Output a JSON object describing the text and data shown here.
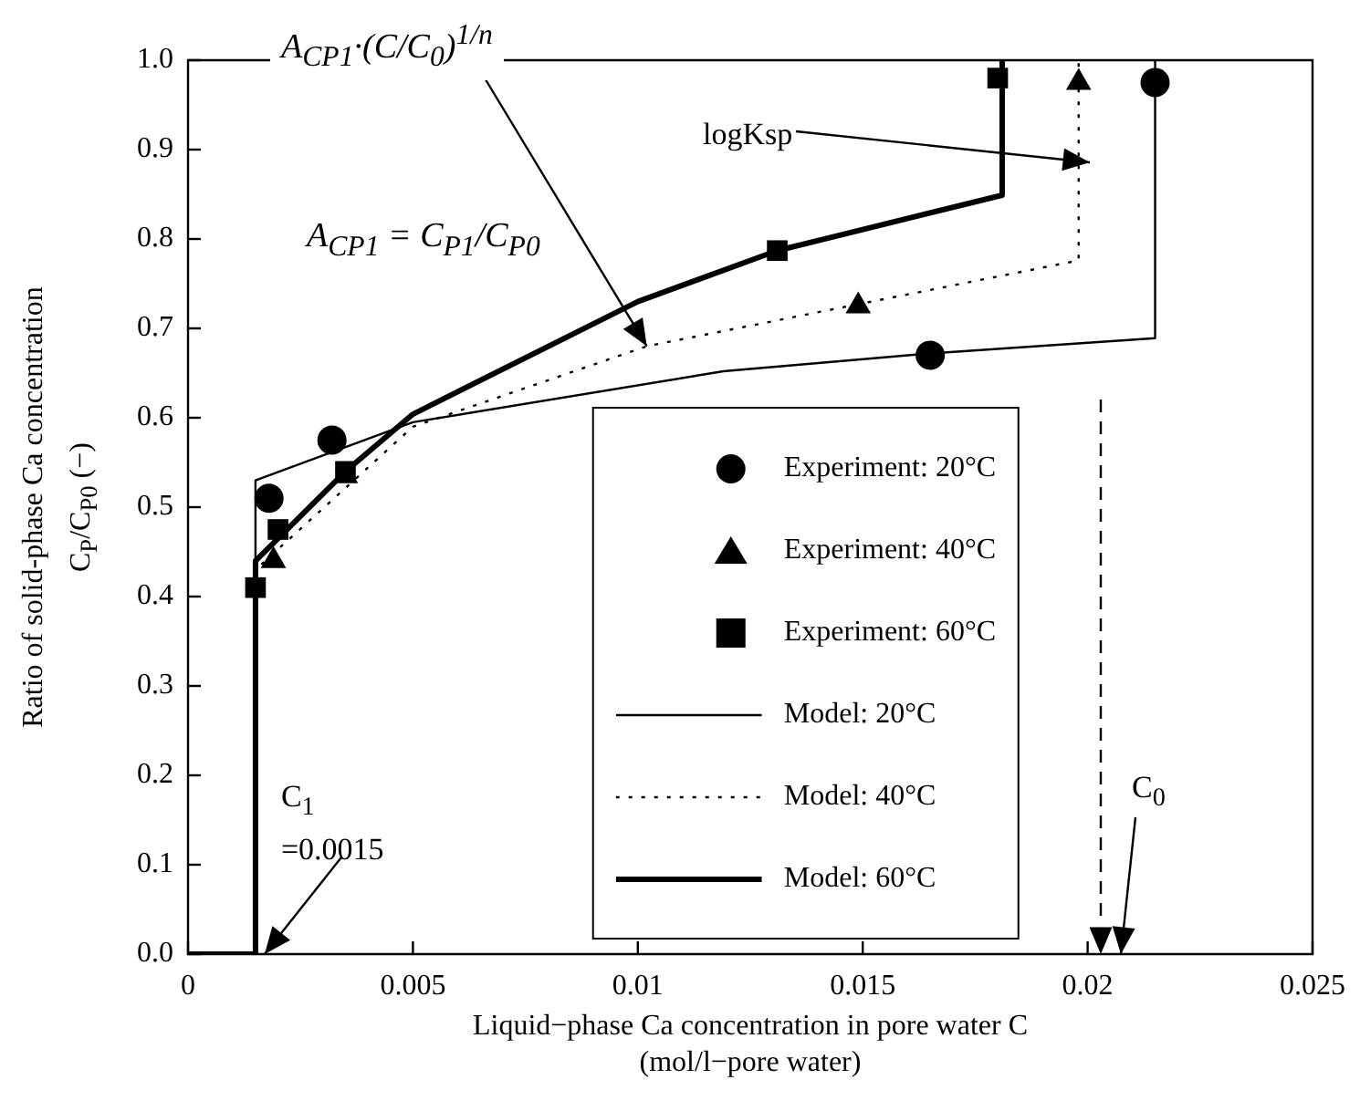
{
  "chart_data": {
    "type": "scatter",
    "xlabel": "Liquid−phase Ca concentration in pore water C\n(mol/l−pore water)",
    "ylabel": "Ratio of solid-phase Ca concentration\nC$_{P}$/C$_{P0}$ (−)",
    "xlim": [
      0,
      0.025
    ],
    "xticks": [
      0,
      0.005,
      0.01,
      0.015,
      0.02,
      0.025
    ],
    "ylim": [
      0,
      1
    ],
    "yticks": [
      {
        "value": 0,
        "label": "0.0"
      },
      {
        "value": 0.1,
        "label": "0.1"
      },
      {
        "value": 0.2,
        "label": "0.2"
      },
      {
        "value": 0.3,
        "label": "0.3"
      },
      {
        "value": 0.4,
        "label": "0.4"
      },
      {
        "value": 0.5,
        "label": "0.5"
      },
      {
        "value": 0.6,
        "label": "0.6"
      },
      {
        "value": 0.7,
        "label": "0.7"
      },
      {
        "value": 0.8,
        "label": "0.8"
      },
      {
        "value": 0.9,
        "label": "0.9"
      },
      {
        "value": 1,
        "label": "1.0"
      }
    ],
    "grid": false,
    "legend": "bottom",
    "series": [
      {
        "name": "Experiment: 20°C",
        "type": "scatter",
        "marker": "circle",
        "color": "#000000",
        "x": [
          0.0018,
          0.0032,
          0.0165,
          0.0215
        ],
        "values": [
          0.51,
          0.575,
          0.67,
          0.975
        ]
      },
      {
        "name": "Experiment: 40°C",
        "type": "scatter",
        "marker": "triangle",
        "color": "#000000",
        "x": [
          0.0019,
          0.0035,
          0.0149,
          0.0198
        ],
        "values": [
          0.44,
          0.535,
          0.725,
          0.975
        ]
      },
      {
        "name": "Experiment: 60°C",
        "type": "scatter",
        "marker": "square",
        "color": "#000000",
        "x": [
          0.0015,
          0.002,
          0.0035,
          0.0131,
          0.018
        ],
        "values": [
          0.41,
          0.475,
          0.54,
          0.787,
          0.98
        ]
      },
      {
        "name": "Model: 20°C",
        "type": "line",
        "marker": "none",
        "line_style": "solid",
        "color": "#000000",
        "x": [
          0,
          0.0015,
          0.0015,
          0.005,
          0.0119,
          0.0165,
          0.0215,
          0.0215
        ],
        "values": [
          0,
          0,
          0.53,
          0.595,
          0.652,
          0.672,
          0.689,
          1
        ]
      },
      {
        "name": "Model: 40°C",
        "type": "line",
        "marker": "none",
        "line_style": "dotted",
        "color": "#000000",
        "x": [
          0,
          0.0015,
          0.0015,
          0.005,
          0.0102,
          0.0198,
          0.0198,
          0.0198
        ],
        "values": [
          0,
          0,
          0.43,
          0.59,
          0.68,
          0.776,
          0.776,
          1
        ]
      },
      {
        "name": "Model: 60°C",
        "type": "line",
        "marker": "none",
        "line_style": "solid",
        "color": "#000000",
        "x": [
          0,
          0.0015,
          0.0015,
          0.0035,
          0.005,
          0.01,
          0.0131,
          0.0181,
          0.0181
        ],
        "values": [
          0,
          0,
          0.44,
          0.54,
          0.604,
          0.73,
          0.787,
          0.849,
          1
        ]
      }
    ],
    "annotations": [
      {
        "text": "A$_{CP1}$·(C/C$_{0}$)$^{1/n}$",
        "x": 0.0102,
        "y": 0.68
      },
      "A$_{CP1}$ = C$_{P1}$/C$_{P0}$",
      "logKsp",
      {
        "text": "C$_{1}$\n=0.0015",
        "x": 0.0015,
        "y": 0
      },
      "C$_{0}$"
    ]
  }
}
